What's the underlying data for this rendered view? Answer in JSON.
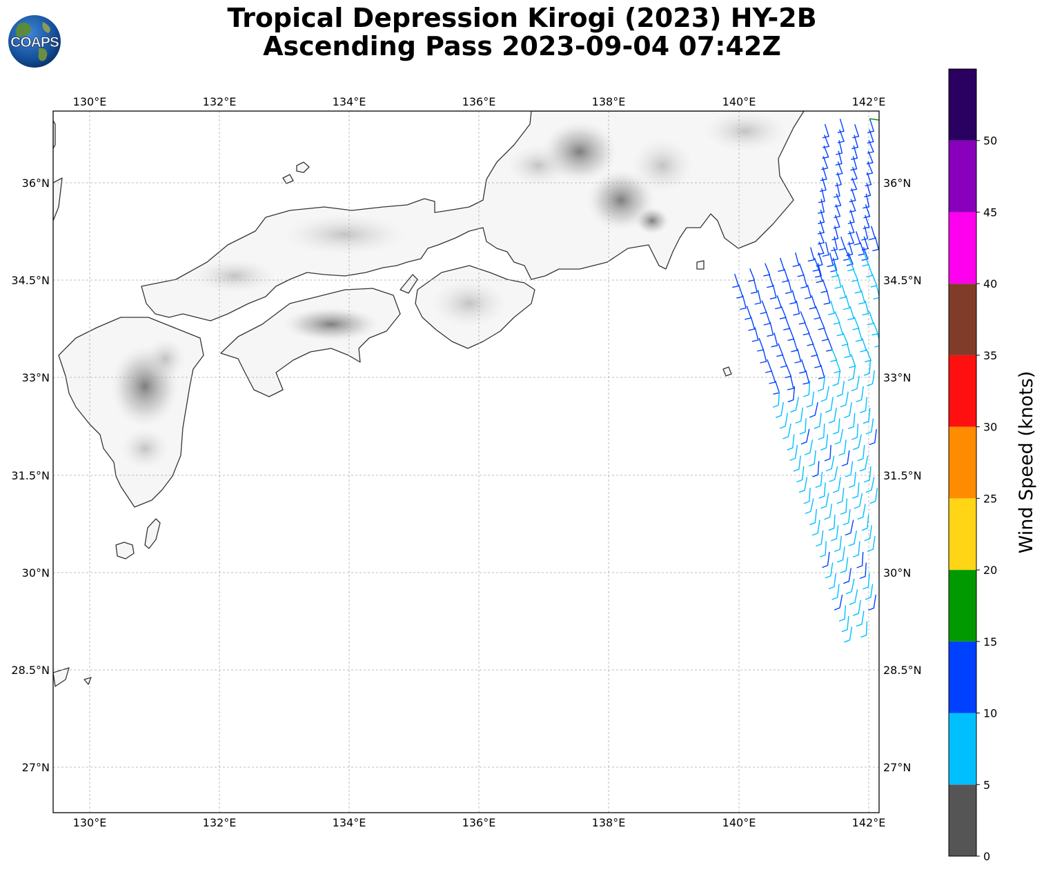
{
  "title": {
    "line1": "Tropical Depression Kirogi (2023) HY-2B",
    "line2": "Ascending Pass 2023-09-04 07:42Z"
  },
  "logo": {
    "text": "COAPS"
  },
  "map": {
    "lon_range": [
      129.45,
      142.15
    ],
    "lat_range": [
      26.3,
      37.1
    ],
    "lon_ticks": [
      "130°E",
      "132°E",
      "134°E",
      "136°E",
      "138°E",
      "140°E",
      "142°E"
    ],
    "lat_ticks": [
      "36°N",
      "34.5°N",
      "33°N",
      "31.5°N",
      "30°N",
      "28.5°N",
      "27°N"
    ],
    "gridlines": true,
    "background": "terrain-shaded land (greyscale) with coastlines"
  },
  "colorbar": {
    "label": "Wind Speed (knots)",
    "ticks": [
      "0",
      "5",
      "10",
      "15",
      "20",
      "25",
      "30",
      "35",
      "40",
      "45",
      "50"
    ],
    "bins": [
      {
        "min": 0,
        "max": 5,
        "color": "#555555"
      },
      {
        "min": 5,
        "max": 10,
        "color": "#00bfff"
      },
      {
        "min": 10,
        "max": 15,
        "color": "#0040ff"
      },
      {
        "min": 15,
        "max": 20,
        "color": "#009900"
      },
      {
        "min": 20,
        "max": 25,
        "color": "#ffd515"
      },
      {
        "min": 25,
        "max": 30,
        "color": "#ff8c00"
      },
      {
        "min": 30,
        "max": 35,
        "color": "#ff1010"
      },
      {
        "min": 35,
        "max": 40,
        "color": "#803c28"
      },
      {
        "min": 40,
        "max": 45,
        "color": "#ff00ee"
      },
      {
        "min": 45,
        "max": 50,
        "color": "#8800bb"
      },
      {
        "min": 50,
        "max": 55,
        "color": "#2a0060"
      }
    ]
  },
  "wind_barbs": {
    "description": "HY-2B scatterometer wind barbs along the eastern edge of the map",
    "lon_range": [
      139.8,
      142.15
    ],
    "lat_range": [
      28.9,
      37.0
    ],
    "speeds_knots_range": [
      5,
      20
    ]
  }
}
